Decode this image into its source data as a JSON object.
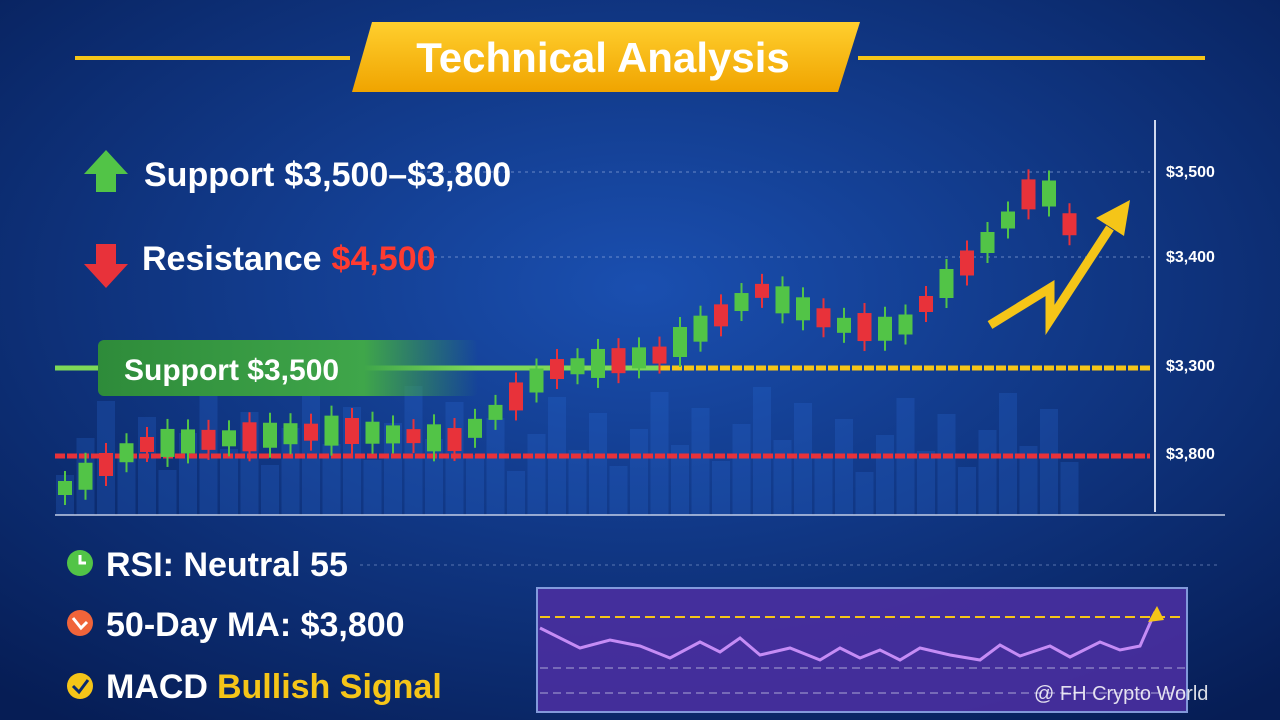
{
  "header": {
    "title": "Technical Analysis"
  },
  "levels": [
    {
      "label": "Support",
      "value": "$3,500–$3,800"
    },
    {
      "label": "Resistance",
      "value": "$4,500"
    }
  ],
  "support_banner": "Support $3,500",
  "axis_labels": [
    "$3,500",
    "$3,400",
    "$3,300",
    "$3,800"
  ],
  "indicators": [
    {
      "label": "RSI: Neutral 55"
    },
    {
      "label": "50-Day MA: $3,800"
    },
    {
      "label": "MACD",
      "highlight": "Bullish Signal"
    }
  ],
  "watermark": "@ FH Crypto World"
}
